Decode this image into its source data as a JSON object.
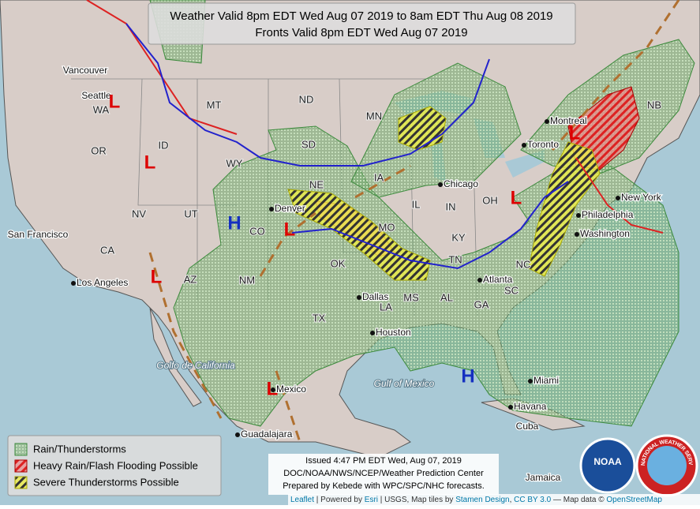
{
  "title": {
    "line1": "Weather Valid 8pm EDT Wed Aug 07 2019 to 8am EDT Thu Aug 08 2019",
    "line2": "Fronts Valid 8pm EDT Wed Aug 07 2019"
  },
  "legend": [
    "Rain/Thunderstorms",
    "Heavy Rain/Flash Flooding Possible",
    "Severe Thunderstorms Possible"
  ],
  "issued": [
    "Issued 4:47 PM EDT Wed, Aug 07, 2019",
    "DOC/NOAA/NWS/NCEP/Weather Prediction Center",
    "Prepared by Kebede with WPC/SPC/NHC forecasts."
  ],
  "attribution": [
    "Leaflet",
    " | Powered by ",
    "Esri",
    " | USGS, Map tiles by ",
    "Stamen Design",
    ", ",
    "CC BY 3.0",
    " — Map data © ",
    "OpenStreetMap"
  ],
  "logos": [
    "NOAA",
    "NATIONAL WEATHER SERVICE"
  ],
  "places": [
    "Vancouver",
    "Seattle",
    "WA",
    "OR",
    "ID",
    "MT",
    "ND",
    "MN",
    "SD",
    "WY",
    "NE",
    "IA",
    "IL",
    "IN",
    "OH",
    "NV",
    "UT",
    "CO",
    "MO",
    "KY",
    "TN",
    "OK",
    "CA",
    "AZ",
    "NM",
    "MS",
    "AL",
    "GA",
    "LA",
    "TX",
    "SC",
    "NC",
    "NB",
    "Montreal",
    "Toronto",
    "Chicago",
    "New York",
    "Philadelphia",
    "Washington",
    "Denver",
    "Dallas",
    "Houston",
    "Los Angeles",
    "San Francisco",
    "Atlanta",
    "Miami",
    "Havana",
    "Cuba",
    "Jamaica",
    "Guadalajara",
    "Mexico",
    "Golfo de California",
    "Gulf of Mexico"
  ],
  "pressure_centers": [
    "H",
    "H",
    "L",
    "L",
    "L",
    "L",
    "L",
    "L",
    "L"
  ]
}
